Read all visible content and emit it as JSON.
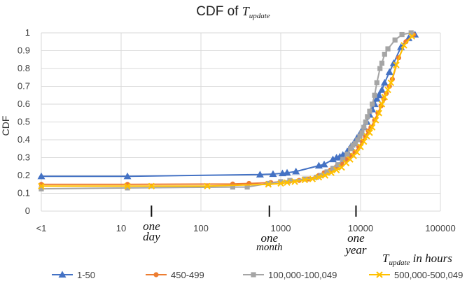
{
  "chart_data": {
    "type": "line",
    "title": {
      "prefix": "CDF of ",
      "variable": "T",
      "subscript": "update"
    },
    "ylabel": "CDF",
    "xlabel": {
      "variable": "T",
      "subscript": "update",
      "suffix": " in hours"
    },
    "x_scale": "log",
    "xlim": [
      1,
      100000
    ],
    "ylim": [
      0,
      1
    ],
    "grid": true,
    "legend_position": "bottom",
    "x_tick_labels": [
      {
        "value": 1,
        "label": "<1"
      },
      {
        "value": 10,
        "label": "10"
      },
      {
        "value": 100,
        "label": "100"
      },
      {
        "value": 1000,
        "label": "1000"
      },
      {
        "value": 10000,
        "label": "10000"
      },
      {
        "value": 100000,
        "label": "100000"
      }
    ],
    "y_tick_labels": [
      {
        "value": 0,
        "label": "0"
      },
      {
        "value": 0.1,
        "label": "0.1"
      },
      {
        "value": 0.2,
        "label": "0.2"
      },
      {
        "value": 0.3,
        "label": "0.3"
      },
      {
        "value": 0.4,
        "label": "0.4"
      },
      {
        "value": 0.5,
        "label": "0.5"
      },
      {
        "value": 0.6,
        "label": "0.6"
      },
      {
        "value": 0.7,
        "label": "0.7"
      },
      {
        "value": 0.8,
        "label": "0.8"
      },
      {
        "value": 0.9,
        "label": "0.9"
      },
      {
        "value": 1,
        "label": "1"
      }
    ],
    "annotations": [
      {
        "id": "one-day",
        "value": 24,
        "lines": [
          "one",
          "day"
        ]
      },
      {
        "id": "one-month",
        "value": 720,
        "lines": [
          "one",
          "month"
        ]
      },
      {
        "id": "one-year",
        "value": 8760,
        "lines": [
          "one",
          "year"
        ]
      }
    ],
    "series": [
      {
        "name": "1-50",
        "color": "#4472C4",
        "marker": "triangle",
        "points": [
          [
            1,
            0.195
          ],
          [
            12,
            0.195
          ],
          [
            550,
            0.205
          ],
          [
            800,
            0.208
          ],
          [
            1050,
            0.212
          ],
          [
            1200,
            0.215
          ],
          [
            1550,
            0.222
          ],
          [
            3000,
            0.255
          ],
          [
            3500,
            0.262
          ],
          [
            4500,
            0.29
          ],
          [
            5000,
            0.3
          ],
          [
            5500,
            0.305
          ],
          [
            6000,
            0.315
          ],
          [
            6800,
            0.335
          ],
          [
            7500,
            0.36
          ],
          [
            8200,
            0.38
          ],
          [
            9000,
            0.41
          ],
          [
            10000,
            0.44
          ],
          [
            11000,
            0.47
          ],
          [
            12000,
            0.5
          ],
          [
            13000,
            0.54
          ],
          [
            14000,
            0.57
          ],
          [
            15000,
            0.6
          ],
          [
            16000,
            0.63
          ],
          [
            17000,
            0.65
          ],
          [
            18500,
            0.68
          ],
          [
            20000,
            0.72
          ],
          [
            23000,
            0.78
          ],
          [
            26000,
            0.83
          ],
          [
            32000,
            0.92
          ],
          [
            40000,
            0.97
          ],
          [
            48000,
            0.99
          ]
        ]
      },
      {
        "name": "450-499",
        "color": "#ED7D31",
        "marker": "circle",
        "points": [
          [
            1,
            0.15
          ],
          [
            12,
            0.15
          ],
          [
            250,
            0.152
          ],
          [
            400,
            0.155
          ],
          [
            750,
            0.16
          ],
          [
            1000,
            0.165
          ],
          [
            1300,
            0.168
          ],
          [
            1700,
            0.172
          ],
          [
            2200,
            0.18
          ],
          [
            3000,
            0.2
          ],
          [
            3500,
            0.215
          ],
          [
            4200,
            0.23
          ],
          [
            5000,
            0.25
          ],
          [
            5800,
            0.265
          ],
          [
            6700,
            0.29
          ],
          [
            7500,
            0.31
          ],
          [
            8500,
            0.33
          ],
          [
            9500,
            0.36
          ],
          [
            10500,
            0.39
          ],
          [
            11500,
            0.42
          ],
          [
            12500,
            0.45
          ],
          [
            13500,
            0.47
          ],
          [
            15000,
            0.51
          ],
          [
            16500,
            0.55
          ],
          [
            18000,
            0.59
          ],
          [
            19500,
            0.63
          ],
          [
            21000,
            0.66
          ],
          [
            23000,
            0.7
          ],
          [
            25000,
            0.74
          ],
          [
            30000,
            0.86
          ],
          [
            37000,
            0.95
          ],
          [
            46000,
            0.99
          ]
        ]
      },
      {
        "name": "100,000-100,049",
        "color": "#A5A5A5",
        "marker": "square",
        "points": [
          [
            1,
            0.125
          ],
          [
            12,
            0.13
          ],
          [
            250,
            0.135
          ],
          [
            380,
            0.135
          ],
          [
            700,
            0.155
          ],
          [
            1000,
            0.165
          ],
          [
            1300,
            0.172
          ],
          [
            2000,
            0.18
          ],
          [
            2800,
            0.19
          ],
          [
            3200,
            0.2
          ],
          [
            3800,
            0.22
          ],
          [
            4500,
            0.24
          ],
          [
            5200,
            0.26
          ],
          [
            6000,
            0.29
          ],
          [
            6800,
            0.32
          ],
          [
            7500,
            0.35
          ],
          [
            8000,
            0.37
          ],
          [
            8600,
            0.38
          ],
          [
            9200,
            0.4
          ],
          [
            9800,
            0.42
          ],
          [
            10400,
            0.44
          ],
          [
            11000,
            0.47
          ],
          [
            11600,
            0.5
          ],
          [
            12200,
            0.53
          ],
          [
            13000,
            0.56
          ],
          [
            14000,
            0.6
          ],
          [
            15000,
            0.65
          ],
          [
            16000,
            0.72
          ],
          [
            17500,
            0.8
          ],
          [
            18500,
            0.83
          ],
          [
            20000,
            0.88
          ],
          [
            22000,
            0.91
          ],
          [
            27000,
            0.96
          ],
          [
            33000,
            0.99
          ],
          [
            43000,
            1.0
          ]
        ]
      },
      {
        "name": "500,000-500,049",
        "color": "#FFC000",
        "marker": "x",
        "points": [
          [
            1,
            0.14
          ],
          [
            12,
            0.14
          ],
          [
            24,
            0.14
          ],
          [
            120,
            0.14
          ],
          [
            700,
            0.15
          ],
          [
            1000,
            0.155
          ],
          [
            1200,
            0.16
          ],
          [
            1500,
            0.165
          ],
          [
            2000,
            0.175
          ],
          [
            2500,
            0.18
          ],
          [
            3000,
            0.19
          ],
          [
            3600,
            0.2
          ],
          [
            4300,
            0.215
          ],
          [
            5000,
            0.23
          ],
          [
            5800,
            0.245
          ],
          [
            6600,
            0.27
          ],
          [
            7400,
            0.29
          ],
          [
            8200,
            0.31
          ],
          [
            9000,
            0.33
          ],
          [
            10000,
            0.36
          ],
          [
            11000,
            0.39
          ],
          [
            12000,
            0.42
          ],
          [
            13000,
            0.44
          ],
          [
            14000,
            0.47
          ],
          [
            15500,
            0.51
          ],
          [
            17000,
            0.55
          ],
          [
            18500,
            0.6
          ],
          [
            20000,
            0.64
          ],
          [
            22000,
            0.68
          ],
          [
            24000,
            0.72
          ],
          [
            28000,
            0.82
          ],
          [
            35000,
            0.93
          ],
          [
            44000,
            0.98
          ]
        ]
      }
    ]
  }
}
